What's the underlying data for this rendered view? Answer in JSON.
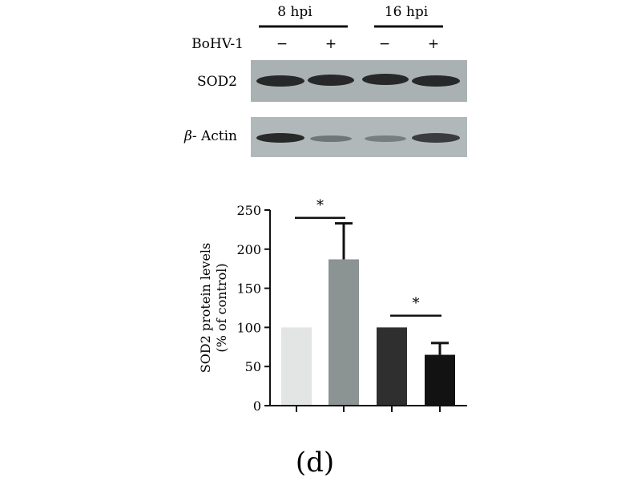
{
  "blot": {
    "time_groups": [
      "8 hpi",
      "16 hpi"
    ],
    "row_label": "BoHV-1",
    "treatments": [
      "−",
      "+",
      "−",
      "+"
    ],
    "bands": [
      {
        "label_prefix": "",
        "label": "SOD2",
        "intensities": [
          0.85,
          0.85,
          0.85,
          0.85
        ]
      },
      {
        "label_prefix": "β",
        "label": "- Actin",
        "intensities": [
          0.85,
          0.4,
          0.35,
          0.75
        ]
      }
    ]
  },
  "chart_data": {
    "type": "bar",
    "categories": [
      "8 hpi −",
      "8 hpi +",
      "16 hpi −",
      "16 hpi +"
    ],
    "values": [
      100,
      187,
      100,
      65
    ],
    "errors": [
      0,
      46,
      0,
      15
    ],
    "bar_colors": [
      "#e3e5e5",
      "#8b9393",
      "#2f2f2f",
      "#121212"
    ],
    "ylabel_line1": "SOD2 protein levels",
    "ylabel_line2": "(% of control)",
    "ylim": [
      0,
      250
    ],
    "yticks": [
      0,
      50,
      100,
      150,
      200,
      250
    ],
    "significance": [
      {
        "from": 0,
        "to": 1,
        "label": "*",
        "y": 240
      },
      {
        "from": 2,
        "to": 3,
        "label": "*",
        "y": 115
      }
    ],
    "panel_label": "(d)"
  }
}
